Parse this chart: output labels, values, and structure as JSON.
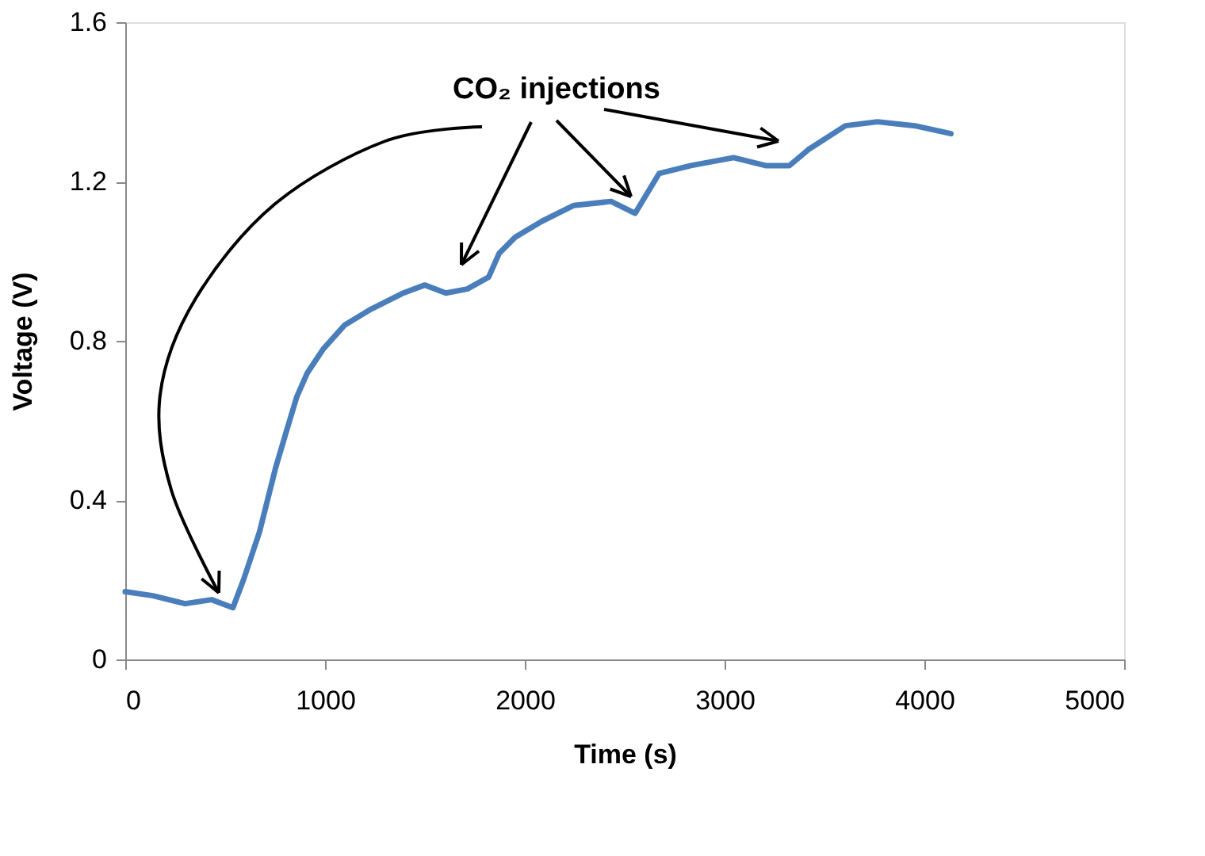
{
  "chart_data": {
    "type": "line",
    "xlabel": "Time (s)",
    "ylabel": "Voltage (V)",
    "annotations": [
      "CO₂ injections"
    ],
    "x": [
      0,
      139,
      299,
      432,
      539,
      592,
      672,
      752,
      805,
      859,
      912,
      992,
      1099,
      1232,
      1392,
      1499,
      1605,
      1712,
      1819,
      1872,
      1952,
      2085,
      2245,
      2432,
      2552,
      2672,
      2832,
      3045,
      3205,
      3325,
      3419,
      3605,
      3765,
      3952,
      4133
    ],
    "series": [
      {
        "color": "#4a7ebb",
        "values": [
          0.17,
          0.16,
          0.14,
          0.15,
          0.13,
          0.2,
          0.32,
          0.48,
          0.57,
          0.66,
          0.72,
          0.78,
          0.84,
          0.88,
          0.92,
          0.94,
          0.92,
          0.93,
          0.96,
          1.02,
          1.06,
          1.1,
          1.14,
          1.15,
          1.12,
          1.22,
          1.24,
          1.26,
          1.24,
          1.24,
          1.28,
          1.34,
          1.35,
          1.34,
          1.32
        ]
      }
    ],
    "xlim": [
      0,
      5000
    ],
    "xticks": [
      0,
      1000,
      2000,
      3000,
      4000,
      5000
    ],
    "ylim": [
      0,
      1.6
    ],
    "yticks": [
      0,
      0.4,
      0.8,
      1.2,
      1.6
    ],
    "grid": false,
    "marker": "none",
    "line_style": "solid"
  }
}
